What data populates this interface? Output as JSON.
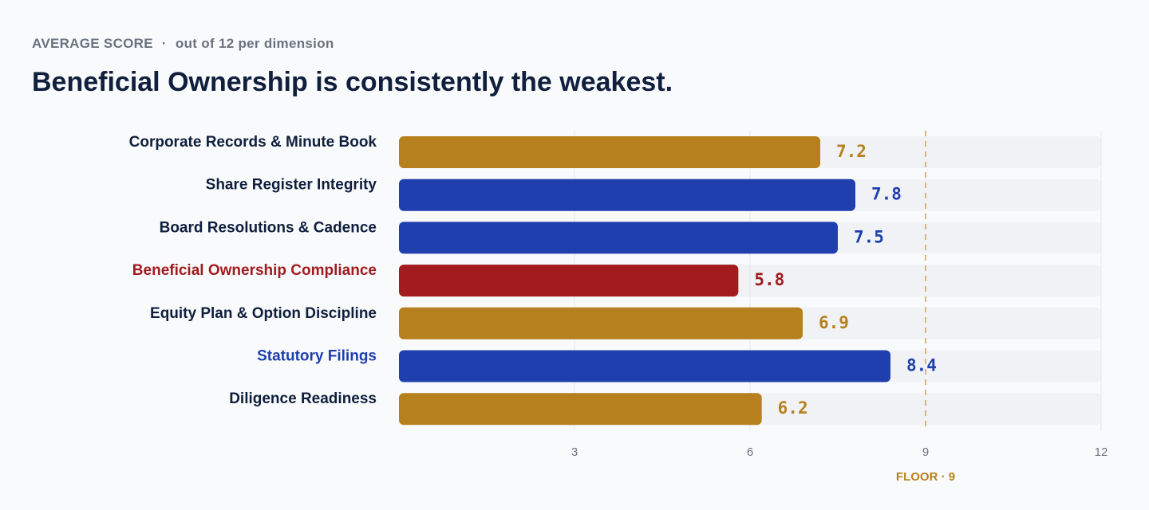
{
  "header": {
    "kicker": "AVERAGE SCORE",
    "kicker_sep": "·",
    "kicker_sub": "out of 12 per dimension",
    "title": "Beneficial Ownership is consistently the weakest."
  },
  "colors": {
    "gold": "#b7801e",
    "blue": "#1f3fae",
    "red": "#a11b1f",
    "dark_text": "#0f1f3d",
    "track": "#f1f2f5",
    "grid": "#e5e7eb",
    "floor": "#c9a35a"
  },
  "chart_data": {
    "type": "bar",
    "orientation": "horizontal",
    "categories": [
      "Corporate Records & Minute Book",
      "Share Register Integrity",
      "Board Resolutions & Cadence",
      "Beneficial Ownership Compliance",
      "Equity Plan & Option Discipline",
      "Statutory Filings",
      "Diligence Readiness"
    ],
    "values": [
      7.2,
      7.8,
      7.5,
      5.8,
      6.9,
      8.4,
      6.2
    ],
    "value_labels": [
      "7.2",
      "7.8",
      "7.5",
      "5.8",
      "6.9",
      "8.4",
      "6.2"
    ],
    "bar_colors": [
      "gold",
      "blue",
      "blue",
      "red",
      "gold",
      "blue",
      "gold"
    ],
    "label_colors": [
      "dark_text",
      "dark_text",
      "dark_text",
      "red",
      "dark_text",
      "blue",
      "dark_text"
    ],
    "xlim": [
      0,
      12
    ],
    "xticks": [
      3,
      6,
      9,
      12
    ],
    "grid": true,
    "reference_line": {
      "value": 9,
      "label": "FLOOR · 9"
    },
    "title": "Beneficial Ownership is consistently the weakest.",
    "xlabel": "",
    "ylabel": ""
  }
}
